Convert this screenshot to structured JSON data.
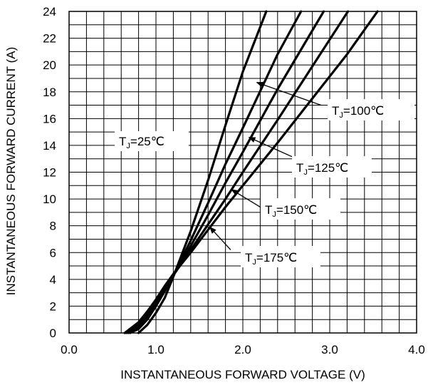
{
  "chart_data": {
    "type": "line",
    "title": "",
    "xlabel": "INSTANTANEOUS FORWARD VOLTAGE (V)",
    "ylabel": "INSTANTANEOUS FORWARD CURRENT (A)",
    "xlim": [
      0.0,
      4.0
    ],
    "ylim": [
      0,
      24
    ],
    "x_ticks": [
      "0.0",
      "1.0",
      "2.0",
      "3.0",
      "4.0"
    ],
    "y_ticks": [
      "0",
      "2",
      "4",
      "6",
      "8",
      "10",
      "12",
      "14",
      "16",
      "18",
      "20",
      "22",
      "24"
    ],
    "grid": true,
    "x_minor_step": 0.2,
    "legend": "none",
    "series": [
      {
        "name": "TJ=25℃",
        "label_main": "T",
        "label_sub": "J",
        "label_rest": "=25℃",
        "x": [
          0.8,
          0.9,
          1.0,
          1.1,
          1.2,
          1.4,
          1.6,
          1.8,
          2.0,
          2.27
        ],
        "y": [
          0.0,
          0.6,
          1.5,
          2.6,
          4.2,
          7.6,
          11.4,
          15.5,
          19.5,
          24.0
        ]
      },
      {
        "name": "TJ=100℃",
        "label_main": "T",
        "label_sub": "J",
        "label_rest": "=100℃",
        "x": [
          0.7,
          0.8,
          0.9,
          1.0,
          1.1,
          1.2,
          1.4,
          1.6,
          1.8,
          2.0,
          2.4,
          2.67
        ],
        "y": [
          0.0,
          0.3,
          1.0,
          2.0,
          3.1,
          4.3,
          6.9,
          9.7,
          12.6,
          15.3,
          20.8,
          24.0
        ]
      },
      {
        "name": "TJ=125℃",
        "label_main": "T",
        "label_sub": "J",
        "label_rest": "=125℃",
        "x": [
          0.68,
          0.8,
          0.9,
          1.0,
          1.1,
          1.2,
          1.4,
          1.6,
          1.8,
          2.0,
          2.4,
          2.93
        ],
        "y": [
          0.0,
          0.4,
          1.2,
          2.2,
          3.3,
          4.3,
          6.5,
          8.8,
          11.2,
          13.5,
          18.2,
          24.0
        ]
      },
      {
        "name": "TJ=150℃",
        "label_main": "T",
        "label_sub": "J",
        "label_rest": "=150℃",
        "x": [
          0.66,
          0.8,
          0.9,
          1.0,
          1.1,
          1.2,
          1.4,
          1.6,
          1.8,
          2.0,
          2.4,
          2.8,
          3.21
        ],
        "y": [
          0.0,
          0.6,
          1.4,
          2.4,
          3.4,
          4.3,
          6.2,
          8.1,
          10.0,
          12.0,
          15.9,
          19.9,
          24.0
        ]
      },
      {
        "name": "TJ=175℃",
        "label_main": "T",
        "label_sub": "J",
        "label_rest": "=175℃",
        "x": [
          0.64,
          0.8,
          0.9,
          1.0,
          1.1,
          1.2,
          1.4,
          1.6,
          1.8,
          2.0,
          2.4,
          2.8,
          3.2,
          3.55
        ],
        "y": [
          0.0,
          0.8,
          1.6,
          2.5,
          3.5,
          4.4,
          6.0,
          7.7,
          9.4,
          11.0,
          14.2,
          17.5,
          20.8,
          24.0
        ]
      }
    ],
    "annotations": [
      {
        "series": 1,
        "arrow_from_xy": [
          2.9,
          17.0
        ],
        "arrow_to_xy": [
          2.16,
          18.7
        ],
        "arrow": true
      },
      {
        "series": 2,
        "arrow_from_xy": [
          2.62,
          13.0
        ],
        "arrow_to_xy": [
          2.07,
          14.6
        ],
        "arrow": true
      },
      {
        "series": 3,
        "arrow_from_xy": [
          2.25,
          9.2
        ],
        "arrow_to_xy": [
          1.87,
          10.7
        ],
        "arrow": true
      },
      {
        "series": 4,
        "arrow_from_xy": [
          1.86,
          6.2
        ],
        "arrow_to_xy": [
          1.62,
          7.9
        ],
        "arrow": true
      },
      {
        "series": 0,
        "arrow": false
      }
    ]
  }
}
